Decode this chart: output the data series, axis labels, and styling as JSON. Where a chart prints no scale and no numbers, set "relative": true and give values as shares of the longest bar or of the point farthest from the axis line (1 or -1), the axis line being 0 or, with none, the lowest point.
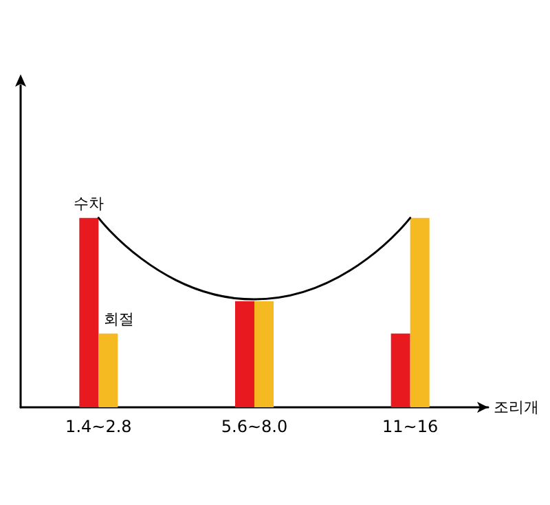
{
  "chart_data": {
    "type": "bar",
    "relative": true,
    "xlabel": "조리개",
    "categories": [
      "1.4~2.8",
      "5.6~8.0",
      "11~16"
    ],
    "series": [
      {
        "name": "수차",
        "color": "#e8191f",
        "values": [
          1,
          0.56,
          0.39
        ]
      },
      {
        "name": "회절",
        "color": "#f5b921",
        "values": [
          0.39,
          0.56,
          1
        ]
      },
      {
        "type": "line",
        "color": "#000000",
        "values": [
          1,
          0.57,
          1
        ]
      }
    ]
  }
}
